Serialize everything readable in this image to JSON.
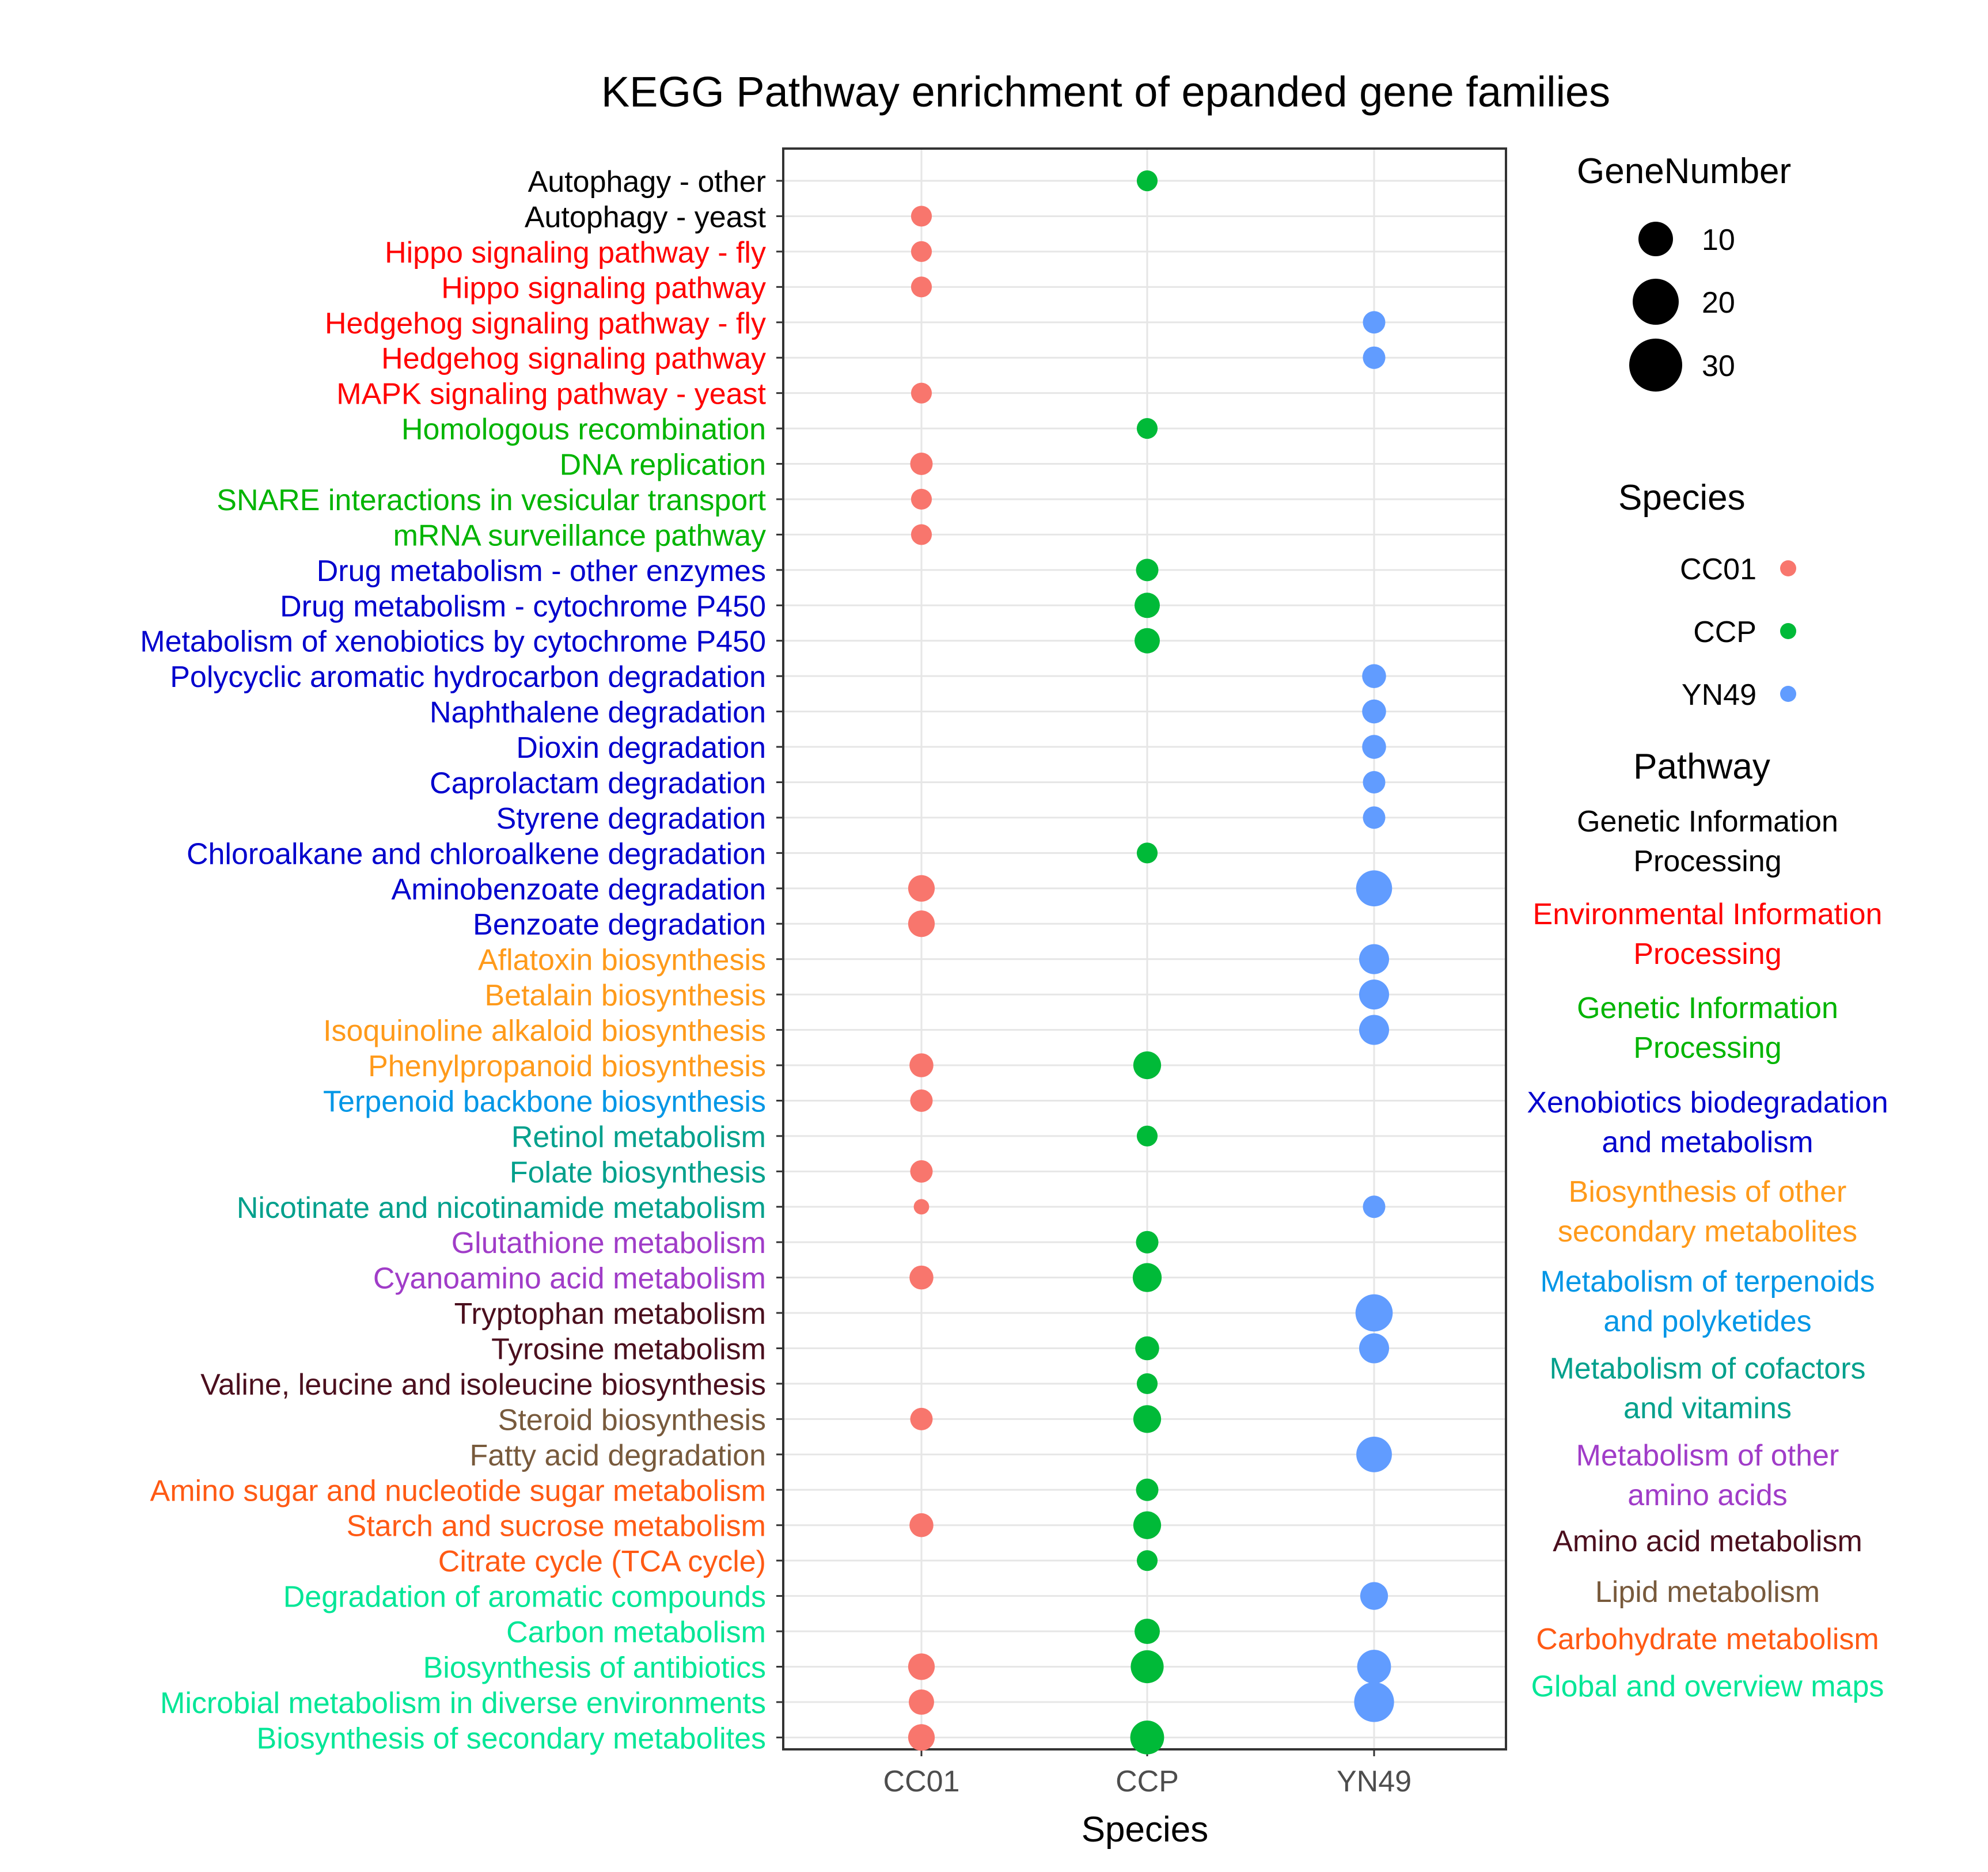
{
  "chart_data": {
    "type": "scatter",
    "title": "KEGG Pathway enrichment of epanded gene families",
    "xlabel": "Species",
    "ylabel": "",
    "x_categories": [
      "CC01",
      "CCP",
      "YN49"
    ],
    "grid": true,
    "pathways": [
      {
        "name": "Autophagy - other",
        "class_index": 0
      },
      {
        "name": "Autophagy - yeast",
        "class_index": 0
      },
      {
        "name": "Hippo signaling pathway - fly",
        "class_index": 1
      },
      {
        "name": "Hippo signaling pathway",
        "class_index": 1
      },
      {
        "name": "Hedgehog signaling pathway - fly",
        "class_index": 1
      },
      {
        "name": "Hedgehog signaling pathway",
        "class_index": 1
      },
      {
        "name": "MAPK signaling pathway - yeast",
        "class_index": 1
      },
      {
        "name": "Homologous recombination",
        "class_index": 2
      },
      {
        "name": "DNA replication",
        "class_index": 2
      },
      {
        "name": "SNARE interactions in vesicular transport",
        "class_index": 2
      },
      {
        "name": "mRNA surveillance pathway",
        "class_index": 2
      },
      {
        "name": "Drug metabolism - other enzymes",
        "class_index": 3
      },
      {
        "name": "Drug metabolism - cytochrome P450",
        "class_index": 3
      },
      {
        "name": "Metabolism of xenobiotics by cytochrome P450",
        "class_index": 3
      },
      {
        "name": "Polycyclic aromatic hydrocarbon degradation",
        "class_index": 3
      },
      {
        "name": "Naphthalene degradation",
        "class_index": 3
      },
      {
        "name": "Dioxin degradation",
        "class_index": 3
      },
      {
        "name": "Caprolactam degradation",
        "class_index": 3
      },
      {
        "name": "Styrene degradation",
        "class_index": 3
      },
      {
        "name": "Chloroalkane and chloroalkene degradation",
        "class_index": 3
      },
      {
        "name": "Aminobenzoate degradation",
        "class_index": 3
      },
      {
        "name": "Benzoate degradation",
        "class_index": 3
      },
      {
        "name": "Aflatoxin biosynthesis",
        "class_index": 4
      },
      {
        "name": "Betalain biosynthesis",
        "class_index": 4
      },
      {
        "name": "Isoquinoline alkaloid biosynthesis",
        "class_index": 4
      },
      {
        "name": "Phenylpropanoid biosynthesis",
        "class_index": 4
      },
      {
        "name": "Terpenoid backbone biosynthesis",
        "class_index": 5
      },
      {
        "name": "Retinol metabolism",
        "class_index": 6
      },
      {
        "name": "Folate biosynthesis",
        "class_index": 6
      },
      {
        "name": "Nicotinate and nicotinamide metabolism",
        "class_index": 6
      },
      {
        "name": "Glutathione metabolism",
        "class_index": 7
      },
      {
        "name": "Cyanoamino acid metabolism",
        "class_index": 7
      },
      {
        "name": "Tryptophan metabolism",
        "class_index": 8
      },
      {
        "name": "Tyrosine metabolism",
        "class_index": 8
      },
      {
        "name": "Valine, leucine and isoleucine biosynthesis",
        "class_index": 8
      },
      {
        "name": "Steroid biosynthesis",
        "class_index": 9
      },
      {
        "name": "Fatty acid degradation",
        "class_index": 9
      },
      {
        "name": "Amino sugar and nucleotide sugar metabolism",
        "class_index": 10
      },
      {
        "name": "Starch and sucrose metabolism",
        "class_index": 10
      },
      {
        "name": "Citrate cycle (TCA cycle)",
        "class_index": 10
      },
      {
        "name": "Degradation of aromatic compounds",
        "class_index": 11
      },
      {
        "name": "Carbon metabolism",
        "class_index": 11
      },
      {
        "name": "Biosynthesis of antibiotics",
        "class_index": 11
      },
      {
        "name": "Microbial metabolism in diverse environments",
        "class_index": 11
      },
      {
        "name": "Biosynthesis of secondary metabolites",
        "class_index": 11
      }
    ],
    "points": [
      {
        "species": "CCP",
        "pathway": "Autophagy - other",
        "gene_number": 8
      },
      {
        "species": "CC01",
        "pathway": "Autophagy - yeast",
        "gene_number": 8
      },
      {
        "species": "CC01",
        "pathway": "Hippo signaling pathway - fly",
        "gene_number": 8
      },
      {
        "species": "CC01",
        "pathway": "Hippo signaling pathway",
        "gene_number": 8
      },
      {
        "species": "YN49",
        "pathway": "Hedgehog signaling pathway - fly",
        "gene_number": 10
      },
      {
        "species": "YN49",
        "pathway": "Hedgehog signaling pathway",
        "gene_number": 10
      },
      {
        "species": "CC01",
        "pathway": "MAPK signaling pathway - yeast",
        "gene_number": 8
      },
      {
        "species": "CCP",
        "pathway": "Homologous recombination",
        "gene_number": 8
      },
      {
        "species": "CC01",
        "pathway": "DNA replication",
        "gene_number": 10
      },
      {
        "species": "CC01",
        "pathway": "SNARE interactions in vesicular transport",
        "gene_number": 8
      },
      {
        "species": "CC01",
        "pathway": "mRNA surveillance pathway",
        "gene_number": 8
      },
      {
        "species": "CCP",
        "pathway": "Drug metabolism - other enzymes",
        "gene_number": 10
      },
      {
        "species": "CCP",
        "pathway": "Drug metabolism - cytochrome P450",
        "gene_number": 14
      },
      {
        "species": "CCP",
        "pathway": "Metabolism of xenobiotics by cytochrome P450",
        "gene_number": 14
      },
      {
        "species": "YN49",
        "pathway": "Polycyclic aromatic hydrocarbon degradation",
        "gene_number": 12
      },
      {
        "species": "YN49",
        "pathway": "Naphthalene degradation",
        "gene_number": 12
      },
      {
        "species": "YN49",
        "pathway": "Dioxin degradation",
        "gene_number": 12
      },
      {
        "species": "YN49",
        "pathway": "Caprolactam degradation",
        "gene_number": 10
      },
      {
        "species": "YN49",
        "pathway": "Styrene degradation",
        "gene_number": 10
      },
      {
        "species": "CCP",
        "pathway": "Chloroalkane and chloroalkene degradation",
        "gene_number": 8
      },
      {
        "species": "CC01",
        "pathway": "Aminobenzoate degradation",
        "gene_number": 16
      },
      {
        "species": "YN49",
        "pathway": "Aminobenzoate degradation",
        "gene_number": 35
      },
      {
        "species": "CC01",
        "pathway": "Benzoate degradation",
        "gene_number": 16
      },
      {
        "species": "YN49",
        "pathway": "Aflatoxin biosynthesis",
        "gene_number": 22
      },
      {
        "species": "YN49",
        "pathway": "Betalain biosynthesis",
        "gene_number": 22
      },
      {
        "species": "YN49",
        "pathway": "Isoquinoline alkaloid biosynthesis",
        "gene_number": 22
      },
      {
        "species": "CC01",
        "pathway": "Phenylpropanoid biosynthesis",
        "gene_number": 12
      },
      {
        "species": "CCP",
        "pathway": "Phenylpropanoid biosynthesis",
        "gene_number": 18
      },
      {
        "species": "CC01",
        "pathway": "Terpenoid backbone biosynthesis",
        "gene_number": 10
      },
      {
        "species": "CCP",
        "pathway": "Retinol metabolism",
        "gene_number": 8
      },
      {
        "species": "CC01",
        "pathway": "Folate biosynthesis",
        "gene_number": 10
      },
      {
        "species": "CC01",
        "pathway": "Nicotinate and nicotinamide metabolism",
        "gene_number": 3
      },
      {
        "species": "YN49",
        "pathway": "Nicotinate and nicotinamide metabolism",
        "gene_number": 10
      },
      {
        "species": "CCP",
        "pathway": "Glutathione metabolism",
        "gene_number": 10
      },
      {
        "species": "CC01",
        "pathway": "Cyanoamino acid metabolism",
        "gene_number": 12
      },
      {
        "species": "CCP",
        "pathway": "Cyanoamino acid metabolism",
        "gene_number": 20
      },
      {
        "species": "YN49",
        "pathway": "Tryptophan metabolism",
        "gene_number": 38
      },
      {
        "species": "CCP",
        "pathway": "Tyrosine metabolism",
        "gene_number": 12
      },
      {
        "species": "YN49",
        "pathway": "Tyrosine metabolism",
        "gene_number": 22
      },
      {
        "species": "CCP",
        "pathway": "Valine, leucine and isoleucine biosynthesis",
        "gene_number": 8
      },
      {
        "species": "CC01",
        "pathway": "Steroid biosynthesis",
        "gene_number": 10
      },
      {
        "species": "CCP",
        "pathway": "Steroid biosynthesis",
        "gene_number": 18
      },
      {
        "species": "YN49",
        "pathway": "Fatty acid degradation",
        "gene_number": 34
      },
      {
        "species": "CCP",
        "pathway": "Amino sugar and nucleotide sugar metabolism",
        "gene_number": 10
      },
      {
        "species": "CC01",
        "pathway": "Starch and sucrose metabolism",
        "gene_number": 12
      },
      {
        "species": "CCP",
        "pathway": "Starch and sucrose metabolism",
        "gene_number": 18
      },
      {
        "species": "CCP",
        "pathway": "Citrate cycle (TCA cycle)",
        "gene_number": 8
      },
      {
        "species": "YN49",
        "pathway": "Degradation of aromatic compounds",
        "gene_number": 18
      },
      {
        "species": "CCP",
        "pathway": "Carbon metabolism",
        "gene_number": 14
      },
      {
        "species": "CC01",
        "pathway": "Biosynthesis of antibiotics",
        "gene_number": 16
      },
      {
        "species": "CCP",
        "pathway": "Biosynthesis of antibiotics",
        "gene_number": 28
      },
      {
        "species": "YN49",
        "pathway": "Biosynthesis of antibiotics",
        "gene_number": 30
      },
      {
        "species": "CC01",
        "pathway": "Microbial metabolism in diverse environments",
        "gene_number": 14
      },
      {
        "species": "YN49",
        "pathway": "Microbial metabolism in diverse environments",
        "gene_number": 45
      },
      {
        "species": "CC01",
        "pathway": "Biosynthesis of secondary metabolites",
        "gene_number": 16
      },
      {
        "species": "CCP",
        "pathway": "Biosynthesis of secondary metabolites",
        "gene_number": 30
      }
    ],
    "size_legend": {
      "title": "GeneNumber",
      "values": [
        10,
        20,
        30
      ]
    },
    "species_legend": {
      "title": "Species",
      "entries": [
        "CC01",
        "CCP",
        "YN49"
      ],
      "colors": [
        "#F8766D",
        "#00BA38",
        "#619CFF"
      ]
    },
    "pathway_legend": {
      "title": "Pathway",
      "classes": [
        {
          "lines": [
            "Genetic Information",
            "Processing"
          ],
          "color": "#000000"
        },
        {
          "lines": [
            "Environmental Information",
            "Processing"
          ],
          "color": "#FF0000"
        },
        {
          "lines": [
            "Genetic Information",
            "Processing"
          ],
          "color": "#00B400"
        },
        {
          "lines": [
            "Xenobiotics biodegradation",
            "and metabolism"
          ],
          "color": "#0000CD"
        },
        {
          "lines": [
            "Biosynthesis of other",
            "secondary metabolites"
          ],
          "color": "#FF9A1A"
        },
        {
          "lines": [
            "Metabolism of terpenoids",
            "and polyketides"
          ],
          "color": "#0096E6"
        },
        {
          "lines": [
            "Metabolism of cofactors",
            "and vitamins"
          ],
          "color": "#00A08C"
        },
        {
          "lines": [
            "Metabolism of other",
            "amino acids"
          ],
          "color": "#A03CC8"
        },
        {
          "lines": [
            "Amino acid metabolism"
          ],
          "color": "#4B0F1E"
        },
        {
          "lines": [
            "Lipid metabolism"
          ],
          "color": "#785A3C"
        },
        {
          "lines": [
            "Carbohydrate metabolism"
          ],
          "color": "#FF5A14"
        },
        {
          "lines": [
            "Global and overview maps"
          ],
          "color": "#00E696"
        }
      ]
    }
  }
}
